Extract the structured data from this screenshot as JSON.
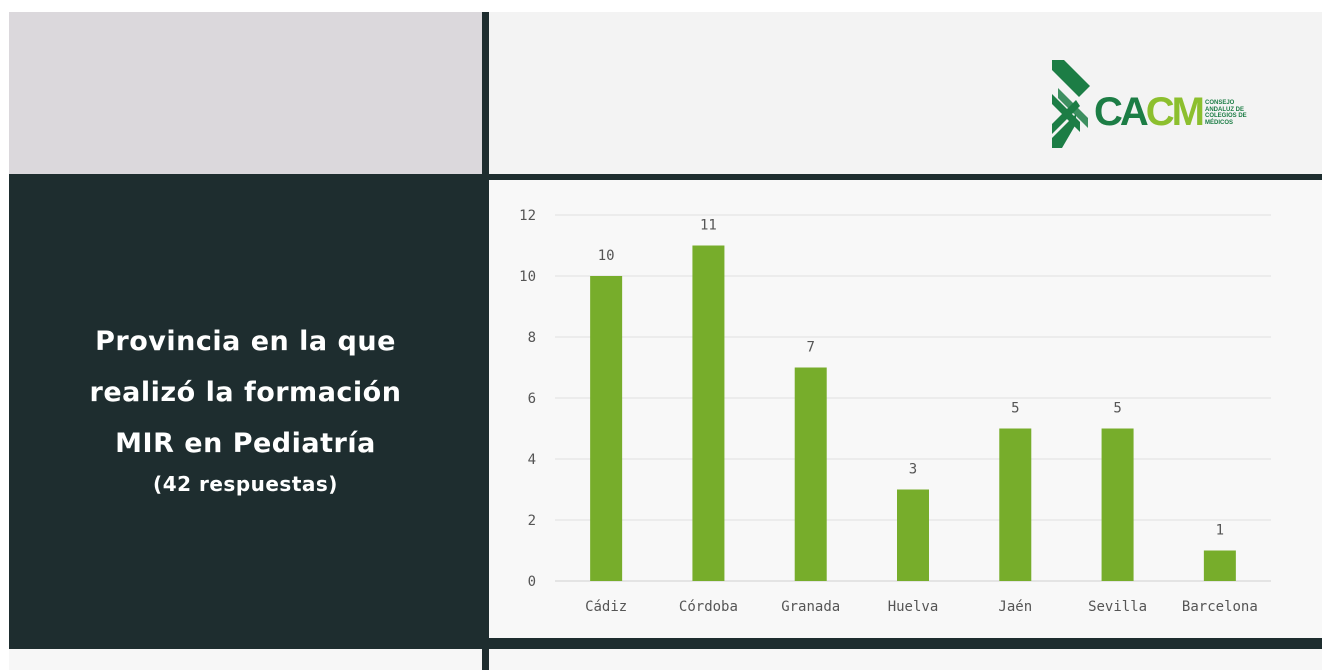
{
  "panel": {
    "title_lines": [
      "Provincia en la que",
      "realizó la formación",
      "MIR en Pediatría"
    ],
    "subtitle": "(42 respuestas)"
  },
  "logo": {
    "text_part1": "CA",
    "text_part2": "CM",
    "small_lines": [
      "CONSEJO",
      "ANDALUZ DE",
      "COLEGIOS DE",
      "MÉDICOS"
    ],
    "colors": {
      "dark_green": "#1c7d45",
      "light_green": "#8cbf2e"
    }
  },
  "chart_data": {
    "type": "bar",
    "categories": [
      "Cádiz",
      "Córdoba",
      "Granada",
      "Huelva",
      "Jaén",
      "Sevilla",
      "Barcelona"
    ],
    "values": [
      10,
      11,
      7,
      3,
      5,
      5,
      1
    ],
    "ylim": [
      0,
      12
    ],
    "yticks": [
      0,
      2,
      4,
      6,
      8,
      10,
      12
    ],
    "grid": true,
    "bar_color": "#77ad2b",
    "data_labels": true
  }
}
